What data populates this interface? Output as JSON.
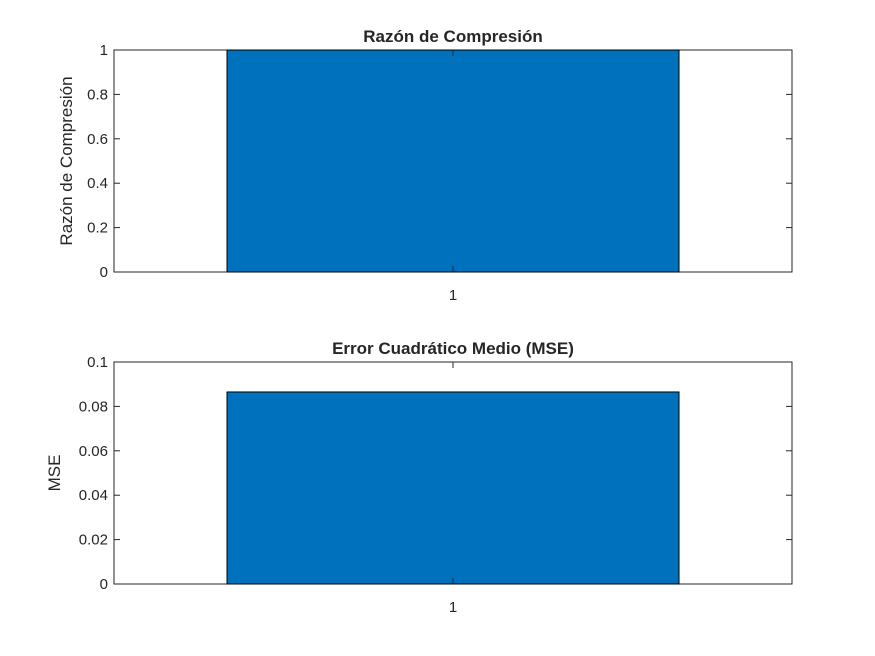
{
  "colors": {
    "bar": "#0072BD",
    "axis": "#262626",
    "background": "#FFFFFF"
  },
  "chart_data": [
    {
      "type": "bar",
      "title": "Razón de Compresión",
      "xlabel": "",
      "ylabel": "Razón de Compresión",
      "categories": [
        "1"
      ],
      "values": [
        1.0
      ],
      "ylim": [
        0,
        1
      ],
      "yticks": [
        "0",
        "0.2",
        "0.4",
        "0.6",
        "0.8",
        "1"
      ],
      "xticks": [
        "1"
      ],
      "grid": false
    },
    {
      "type": "bar",
      "title": "Error Cuadrático Medio (MSE)",
      "xlabel": "",
      "ylabel": "MSE",
      "categories": [
        "1"
      ],
      "values": [
        0.0865
      ],
      "ylim": [
        0,
        0.1
      ],
      "yticks": [
        "0",
        "0.02",
        "0.04",
        "0.06",
        "0.08",
        "0.1"
      ],
      "xticks": [
        "1"
      ],
      "grid": false
    }
  ]
}
